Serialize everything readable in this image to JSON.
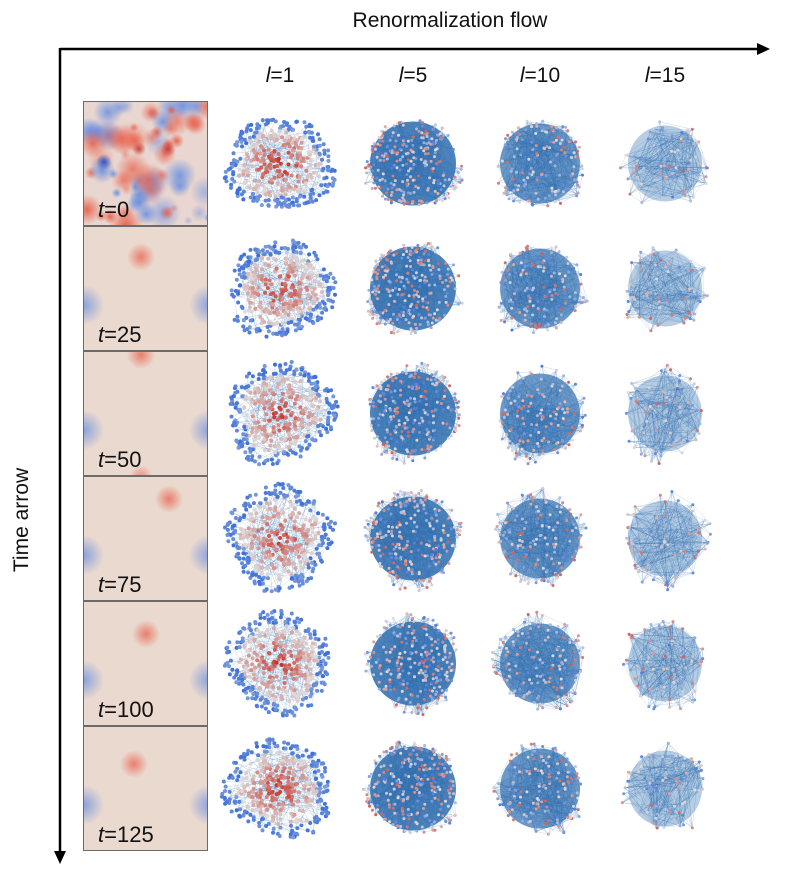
{
  "figure": {
    "horizontal_axis_label": "Renormalization flow",
    "vertical_axis_label": "Time arrow",
    "columns": [
      {
        "var": "l",
        "eq": "=1",
        "value": 1
      },
      {
        "var": "l",
        "eq": "=5",
        "value": 5
      },
      {
        "var": "l",
        "eq": "=10",
        "value": 10
      },
      {
        "var": "l",
        "eq": "=15",
        "value": 15
      }
    ],
    "rows": [
      {
        "var": "t",
        "eq": "=0",
        "value": 0,
        "field": "turbulent"
      },
      {
        "var": "t",
        "eq": "=25",
        "value": 25,
        "field": "smooth"
      },
      {
        "var": "t",
        "eq": "=50",
        "value": 50,
        "field": "smooth"
      },
      {
        "var": "t",
        "eq": "=75",
        "value": 75,
        "field": "smooth"
      },
      {
        "var": "t",
        "eq": "=100",
        "value": 100,
        "field": "smooth"
      },
      {
        "var": "t",
        "eq": "=125",
        "value": 125,
        "field": "smooth"
      }
    ],
    "graph_description": "Network graph embeddings colored by node value (coolwarm colormap), becoming sparser as l increases",
    "colors": {
      "axis": "#000000",
      "edge": "#2f6fb0",
      "positive": "#d6443a",
      "negative": "#3b6fd8",
      "neutral": "#e8d9cf",
      "panel_border": "#6b6b6b"
    }
  }
}
